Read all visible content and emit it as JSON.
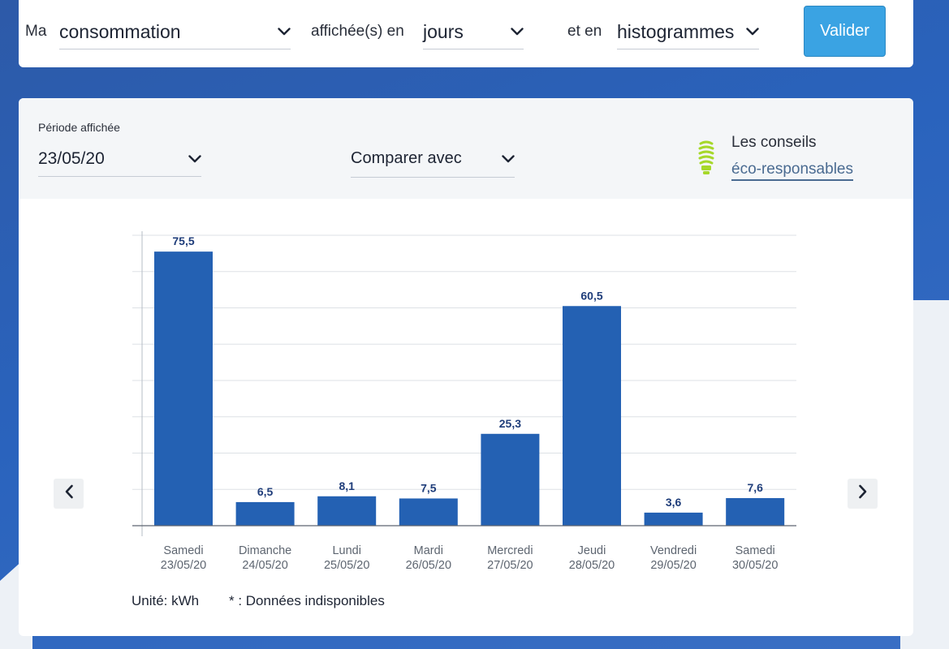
{
  "filter": {
    "prefix_label": "Ma",
    "measure_value": "consommation",
    "middle_label": "affichée(s) en",
    "granularity_value": "jours",
    "suffix_label": "et en",
    "chart_type_value": "histogrammes",
    "submit_label": "Valider"
  },
  "header": {
    "period_label": "Période affichée",
    "period_value": "23/05/20",
    "compare_label": "Comparer avec",
    "tips_title": "Les conseils",
    "tips_link": "éco-responsables"
  },
  "colors": {
    "bar": "#2461b3",
    "label": "#1f3d7a",
    "accent_button": "#3aa3e3",
    "bulb": "#a6d82a"
  },
  "chart_data": {
    "type": "bar",
    "title": "",
    "categories": [
      {
        "day": "Samedi",
        "date": "23/05/20"
      },
      {
        "day": "Dimanche",
        "date": "24/05/20"
      },
      {
        "day": "Lundi",
        "date": "25/05/20"
      },
      {
        "day": "Mardi",
        "date": "26/05/20"
      },
      {
        "day": "Mercredi",
        "date": "27/05/20"
      },
      {
        "day": "Jeudi",
        "date": "28/05/20"
      },
      {
        "day": "Vendredi",
        "date": "29/05/20"
      },
      {
        "day": "Samedi",
        "date": "30/05/20"
      }
    ],
    "values": [
      75.5,
      6.5,
      8.1,
      7.5,
      25.3,
      60.5,
      3.6,
      7.6
    ],
    "value_labels": [
      "75,5",
      "6,5",
      "8,1",
      "7,5",
      "25,3",
      "60,5",
      "3,6",
      "7,6"
    ],
    "ylim": [
      0,
      80
    ],
    "grid": true,
    "ylabel": "",
    "xlabel": ""
  },
  "footer": {
    "unit": "Unité: kWh",
    "unavailable_note": "* : Données indisponibles"
  },
  "nav": {
    "prev_icon": "chevron-left-icon",
    "next_icon": "chevron-right-icon"
  }
}
